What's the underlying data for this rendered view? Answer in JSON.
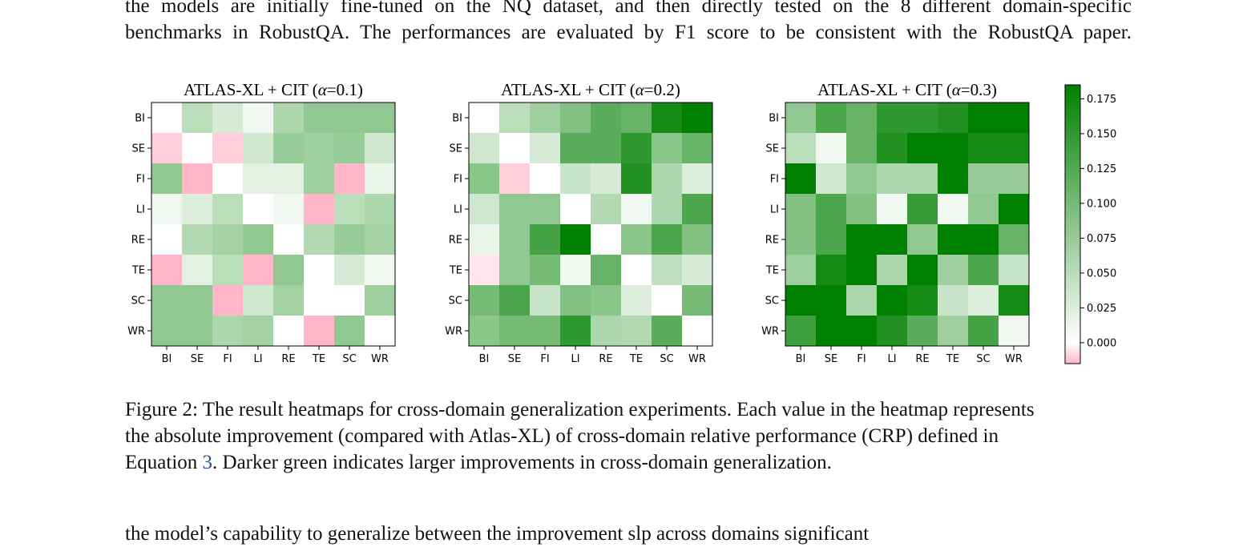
{
  "top_paragraph": {
    "lines": [
      "the models are initially fine-tuned on the NQ dataset, and then directly tested on the 8 different domain-specific",
      "benchmarks in RobustQA. The performances are evaluated by F1 score to be consistent with the RobustQA paper."
    ]
  },
  "caption": {
    "line1": "Figure 2: The result heatmaps for cross-domain generalization experiments. Each value in the heatmap represents",
    "line2": "the absolute improvement (compared with Atlas-XL) of cross-domain relative performance (CRP) defined in",
    "line3_before": "Equation ",
    "line3_ref": "3",
    "line3_after": ". Darker green indicates larger improvements in cross-domain generalization."
  },
  "bottom_paragraph": {
    "text": "the model’s capability to generalize between the improvement slp across domains significant"
  },
  "colors": {
    "max_green": "#008000",
    "min_pink": "#ffb6c8",
    "zero_white": "#ffffff"
  },
  "chart_data": [
    {
      "type": "heatmap",
      "title_prefix": "ATLAS-XL + CIT (",
      "alpha_symbol": "α",
      "title_suffix": "=0.1)",
      "x_categories": [
        "BI",
        "SE",
        "FI",
        "LI",
        "RE",
        "TE",
        "SC",
        "WR"
      ],
      "y_categories": [
        "BI",
        "SE",
        "FI",
        "LI",
        "RE",
        "TE",
        "SC",
        "WR"
      ],
      "values": [
        [
          0.0,
          0.05,
          0.03,
          0.01,
          0.06,
          0.08,
          0.08,
          0.08
        ],
        [
          -0.01,
          0.0,
          -0.01,
          0.035,
          0.075,
          0.07,
          0.075,
          0.035
        ],
        [
          0.08,
          -0.015,
          0.0,
          0.02,
          0.02,
          0.07,
          -0.015,
          0.015
        ],
        [
          0.01,
          0.025,
          0.05,
          0.0,
          0.01,
          -0.015,
          0.05,
          0.06
        ],
        [
          0.0,
          0.055,
          0.065,
          0.08,
          0.0,
          0.055,
          0.075,
          0.065
        ],
        [
          -0.015,
          0.02,
          0.05,
          -0.015,
          0.08,
          0.0,
          0.03,
          0.01
        ],
        [
          0.08,
          0.08,
          -0.015,
          0.035,
          0.065,
          0.0,
          0.0,
          0.07
        ],
        [
          0.08,
          0.08,
          0.06,
          0.065,
          0.0,
          -0.015,
          0.08,
          0.0
        ]
      ]
    },
    {
      "type": "heatmap",
      "title_prefix": "ATLAS-XL + CIT (",
      "alpha_symbol": "α",
      "title_suffix": "=0.2)",
      "x_categories": [
        "BI",
        "SE",
        "FI",
        "LI",
        "RE",
        "TE",
        "SC",
        "WR"
      ],
      "y_categories": [
        "BI",
        "SE",
        "FI",
        "LI",
        "RE",
        "TE",
        "SC",
        "WR"
      ],
      "values": [
        [
          0.0,
          0.05,
          0.07,
          0.09,
          0.12,
          0.11,
          0.17,
          0.185
        ],
        [
          0.035,
          0.0,
          0.03,
          0.12,
          0.12,
          0.15,
          0.085,
          0.11
        ],
        [
          0.085,
          -0.01,
          0.0,
          0.04,
          0.03,
          0.16,
          0.06,
          0.025
        ],
        [
          0.035,
          0.08,
          0.08,
          0.0,
          0.055,
          0.01,
          0.06,
          0.13
        ],
        [
          0.015,
          0.08,
          0.135,
          0.185,
          0.0,
          0.085,
          0.13,
          0.09
        ],
        [
          -0.005,
          0.08,
          0.1,
          0.01,
          0.11,
          0.0,
          0.045,
          0.03
        ],
        [
          0.1,
          0.13,
          0.04,
          0.09,
          0.085,
          0.025,
          0.0,
          0.1
        ],
        [
          0.085,
          0.1,
          0.1,
          0.15,
          0.06,
          0.055,
          0.12,
          0.0
        ]
      ]
    },
    {
      "type": "heatmap",
      "title_prefix": "ATLAS-XL + CIT (",
      "alpha_symbol": "α",
      "title_suffix": "=0.3)",
      "x_categories": [
        "BI",
        "SE",
        "FI",
        "LI",
        "RE",
        "TE",
        "SC",
        "WR"
      ],
      "y_categories": [
        "BI",
        "SE",
        "FI",
        "LI",
        "RE",
        "TE",
        "SC",
        "WR"
      ],
      "values": [
        [
          0.08,
          0.13,
          0.11,
          0.15,
          0.15,
          0.16,
          0.185,
          0.185
        ],
        [
          0.05,
          0.01,
          0.11,
          0.16,
          0.185,
          0.185,
          0.17,
          0.17
        ],
        [
          0.185,
          0.035,
          0.08,
          0.06,
          0.06,
          0.185,
          0.075,
          0.075
        ],
        [
          0.09,
          0.13,
          0.09,
          0.01,
          0.145,
          0.01,
          0.08,
          0.185
        ],
        [
          0.09,
          0.13,
          0.185,
          0.185,
          0.08,
          0.185,
          0.185,
          0.11
        ],
        [
          0.07,
          0.17,
          0.185,
          0.06,
          0.185,
          0.07,
          0.13,
          0.04
        ],
        [
          0.185,
          0.185,
          0.06,
          0.185,
          0.17,
          0.04,
          0.025,
          0.17
        ],
        [
          0.14,
          0.185,
          0.185,
          0.16,
          0.12,
          0.07,
          0.135,
          0.01
        ]
      ]
    }
  ],
  "colorbar": {
    "range": [
      -0.015,
      0.185
    ],
    "ticks": [
      0.0,
      0.025,
      0.05,
      0.075,
      0.1,
      0.125,
      0.15,
      0.175
    ],
    "tick_labels": [
      "0.000",
      "0.025",
      "0.050",
      "0.075",
      "0.100",
      "0.125",
      "0.150",
      "0.175"
    ]
  }
}
